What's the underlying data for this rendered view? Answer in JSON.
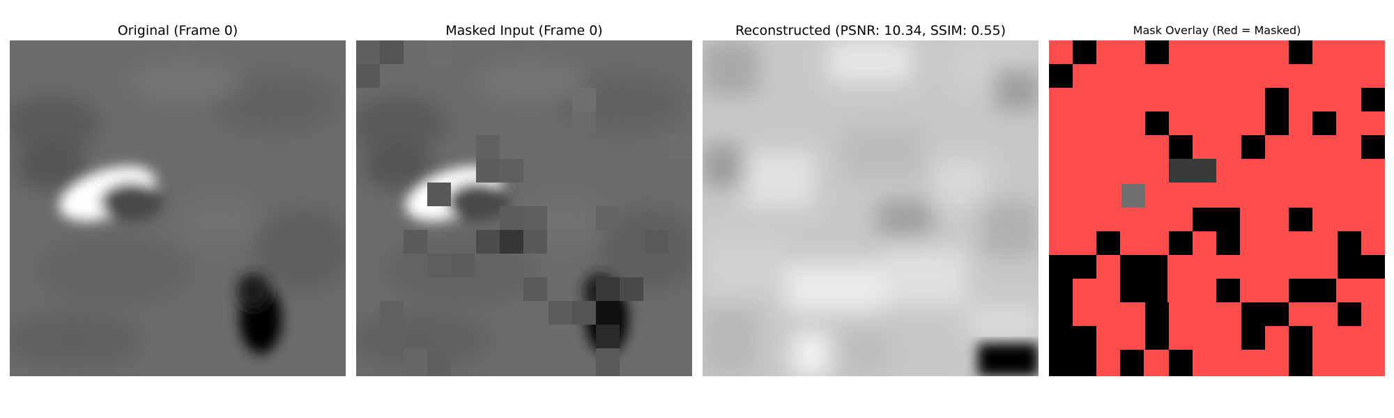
{
  "panels": [
    {
      "title": "Original (Frame 0)"
    },
    {
      "title": "Masked Input (Frame 0)"
    },
    {
      "title": "Reconstructed (PSNR: 10.34, SSIM: 0.55)"
    },
    {
      "title": "Mask Overlay (Red = Masked)"
    }
  ],
  "colors": {
    "mask_red": "#ff4d4d",
    "visible_black": "#000000",
    "background_gray": "#6b6b6b"
  }
}
